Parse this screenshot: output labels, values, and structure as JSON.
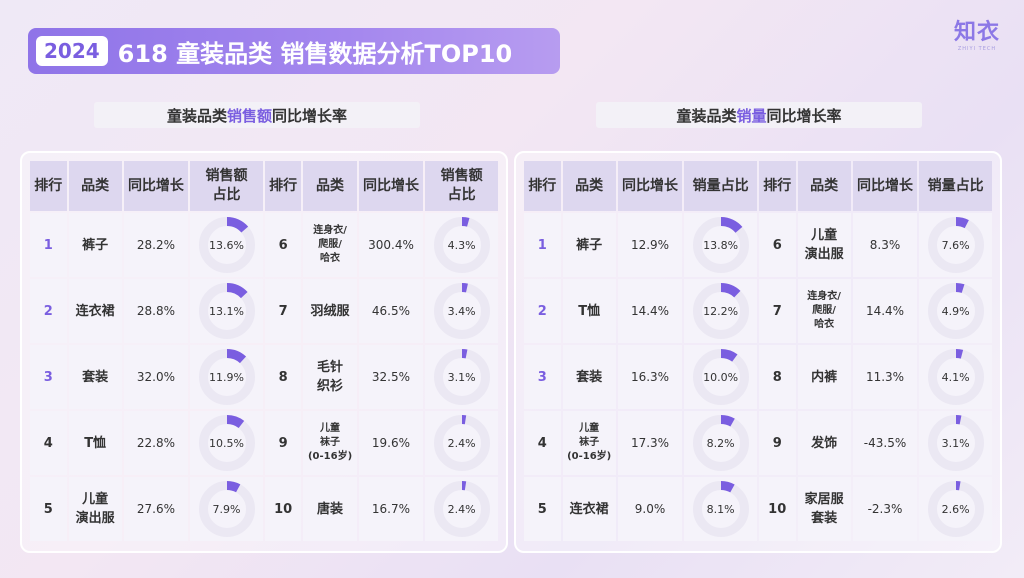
{
  "header": {
    "year": "2024",
    "title": "618 童装品类 销售数据分析TOP10",
    "logo": "知衣",
    "logo_sub": "ZHIYI TECH"
  },
  "colors": {
    "accent": "#7a5ee0",
    "header_cell": "#ddd7ef",
    "body_cell": "#f5f3fa"
  },
  "left": {
    "title_pre": "童装品类",
    "title_hl": "销售额",
    "title_post": "同比增长率",
    "columns": [
      "排行",
      "品类",
      "同比增长",
      "销售额\n占比",
      "排行",
      "品类",
      "同比增长",
      "销售额\n占比"
    ],
    "col_labels": {
      "rank": "排行",
      "cat": "品类",
      "yoy": "同比增长",
      "share_a": "销售额",
      "share_b": "占比"
    },
    "rows": [
      [
        {
          "rank": "1",
          "cat": "裤子",
          "yoy": "28.2%",
          "share": "13.6%",
          "pct": 13.6
        },
        {
          "rank": "6",
          "cat": "连身衣/\n爬服/\n哈衣",
          "yoy": "300.4%",
          "share": "4.3%",
          "pct": 4.3
        }
      ],
      [
        {
          "rank": "2",
          "cat": "连衣裙",
          "yoy": "28.8%",
          "share": "13.1%",
          "pct": 13.1
        },
        {
          "rank": "7",
          "cat": "羽绒服",
          "yoy": "46.5%",
          "share": "3.4%",
          "pct": 3.4
        }
      ],
      [
        {
          "rank": "3",
          "cat": "套装",
          "yoy": "32.0%",
          "share": "11.9%",
          "pct": 11.9
        },
        {
          "rank": "8",
          "cat": "毛针\n织衫",
          "yoy": "32.5%",
          "share": "3.1%",
          "pct": 3.1
        }
      ],
      [
        {
          "rank": "4",
          "cat": "T恤",
          "yoy": "22.8%",
          "share": "10.5%",
          "pct": 10.5
        },
        {
          "rank": "9",
          "cat": "儿童\n袜子\n(0-16岁)",
          "yoy": "19.6%",
          "share": "2.4%",
          "pct": 2.4
        }
      ],
      [
        {
          "rank": "5",
          "cat": "儿童\n演出服",
          "yoy": "27.6%",
          "share": "7.9%",
          "pct": 7.9
        },
        {
          "rank": "10",
          "cat": "唐装",
          "yoy": "16.7%",
          "share": "2.4%",
          "pct": 2.4
        }
      ]
    ]
  },
  "right": {
    "title_pre": "童装品类",
    "title_hl": "销量",
    "title_post": "同比增长率",
    "col_labels": {
      "rank": "排行",
      "cat": "品类",
      "yoy": "同比增长",
      "share": "销量占比"
    },
    "rows": [
      [
        {
          "rank": "1",
          "cat": "裤子",
          "yoy": "12.9%",
          "share": "13.8%",
          "pct": 13.8
        },
        {
          "rank": "6",
          "cat": "儿童\n演出服",
          "yoy": "8.3%",
          "share": "7.6%",
          "pct": 7.6
        }
      ],
      [
        {
          "rank": "2",
          "cat": "T恤",
          "yoy": "14.4%",
          "share": "12.2%",
          "pct": 12.2
        },
        {
          "rank": "7",
          "cat": "连身衣/\n爬服/\n哈衣",
          "yoy": "14.4%",
          "share": "4.9%",
          "pct": 4.9
        }
      ],
      [
        {
          "rank": "3",
          "cat": "套装",
          "yoy": "16.3%",
          "share": "10.0%",
          "pct": 10.0
        },
        {
          "rank": "8",
          "cat": "内裤",
          "yoy": "11.3%",
          "share": "4.1%",
          "pct": 4.1
        }
      ],
      [
        {
          "rank": "4",
          "cat": "儿童\n袜子\n(0-16岁)",
          "yoy": "17.3%",
          "share": "8.2%",
          "pct": 8.2
        },
        {
          "rank": "9",
          "cat": "发饰",
          "yoy": "-43.5%",
          "share": "3.1%",
          "pct": 3.1
        }
      ],
      [
        {
          "rank": "5",
          "cat": "连衣裙",
          "yoy": "9.0%",
          "share": "8.1%",
          "pct": 8.1
        },
        {
          "rank": "10",
          "cat": "家居服\n套装",
          "yoy": "-2.3%",
          "share": "2.6%",
          "pct": 2.6
        }
      ]
    ]
  }
}
